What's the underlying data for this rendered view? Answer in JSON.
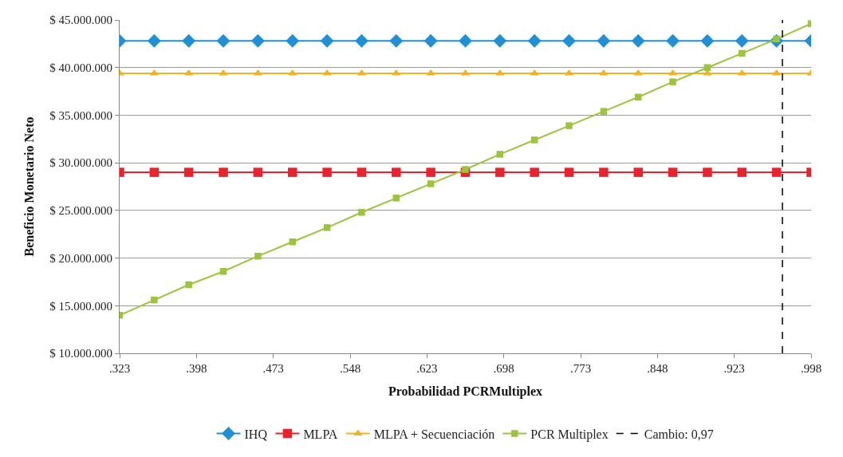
{
  "chart_data": {
    "type": "line",
    "xlabel": "Probabilidad PCRMultiplex",
    "ylabel": "Beneficio Monetario Neto",
    "x": [
      0.323,
      0.35675,
      0.3905,
      0.42425,
      0.458,
      0.49175,
      0.5255,
      0.55925,
      0.593,
      0.62675,
      0.6605,
      0.69425,
      0.728,
      0.76175,
      0.7955,
      0.82925,
      0.863,
      0.89675,
      0.9305,
      0.96425,
      0.998
    ],
    "xlim": [
      0.323,
      0.998
    ],
    "xticks": [
      {
        "value": 0.323,
        "label": ".323"
      },
      {
        "value": 0.398,
        "label": ".398"
      },
      {
        "value": 0.473,
        "label": ".473"
      },
      {
        "value": 0.548,
        "label": ".548"
      },
      {
        "value": 0.623,
        "label": ".623"
      },
      {
        "value": 0.698,
        "label": ".698"
      },
      {
        "value": 0.773,
        "label": ".773"
      },
      {
        "value": 0.848,
        "label": ".848"
      },
      {
        "value": 0.923,
        "label": ".923"
      },
      {
        "value": 0.998,
        "label": ".998"
      }
    ],
    "ylim": [
      10000000,
      45000000
    ],
    "yticks": [
      {
        "value": 10000000,
        "label": "$ 10.000.000"
      },
      {
        "value": 15000000,
        "label": "$ 15.000.000"
      },
      {
        "value": 20000000,
        "label": "$ 20.000.000"
      },
      {
        "value": 25000000,
        "label": "$ 25.000.000"
      },
      {
        "value": 30000000,
        "label": "$ 30.000.000"
      },
      {
        "value": 35000000,
        "label": "$ 35.000.000"
      },
      {
        "value": 40000000,
        "label": "$ 40.000.000"
      },
      {
        "value": 45000000,
        "label": "$ 45.000.000"
      }
    ],
    "grid": "y",
    "legend": "bottom",
    "line_style": "solid",
    "series": [
      {
        "name": "IHQ",
        "color": "#1f8fd6",
        "marker": "diamond",
        "values": [
          42800000,
          42800000,
          42800000,
          42800000,
          42800000,
          42800000,
          42800000,
          42800000,
          42800000,
          42800000,
          42800000,
          42800000,
          42800000,
          42800000,
          42800000,
          42800000,
          42800000,
          42800000,
          42800000,
          42800000,
          42800000
        ]
      },
      {
        "name": "MLPA",
        "color": "#e8222e",
        "marker": "square",
        "values": [
          29000000,
          29000000,
          29000000,
          29000000,
          29000000,
          29000000,
          29000000,
          29000000,
          29000000,
          29000000,
          29000000,
          29000000,
          29000000,
          29000000,
          29000000,
          29000000,
          29000000,
          29000000,
          29000000,
          29000000,
          29000000
        ]
      },
      {
        "name": "MLPA + Secuenciación",
        "color": "#f0b323",
        "marker": "triangle",
        "values": [
          39400000,
          39400000,
          39400000,
          39400000,
          39400000,
          39400000,
          39400000,
          39400000,
          39400000,
          39400000,
          39400000,
          39400000,
          39400000,
          39400000,
          39400000,
          39400000,
          39400000,
          39400000,
          39400000,
          39400000,
          39400000
        ]
      },
      {
        "name": "PCR Multiplex",
        "color": "#9cc43c",
        "marker": "square",
        "values": [
          14000000,
          15600000,
          17200000,
          18600000,
          20200000,
          21700000,
          23200000,
          24800000,
          26300000,
          27800000,
          29300000,
          30900000,
          32400000,
          33900000,
          35400000,
          36900000,
          38500000,
          40000000,
          41500000,
          43000000,
          44600000
        ]
      }
    ],
    "ref_lines": [
      {
        "axis": "x",
        "value": 0.97,
        "label": "Cambio: 0,97",
        "color": "#000000",
        "line_style": "dashed"
      }
    ]
  }
}
